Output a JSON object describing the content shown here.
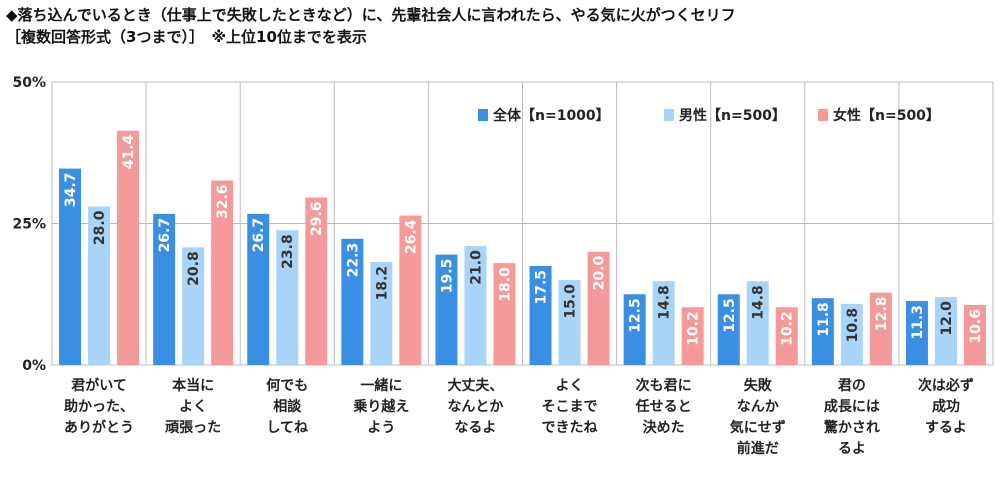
{
  "title": "◆落ち込んでいるとき（仕事上で失敗したときなど）に、先輩社会人に言われたら、やる気に火がつくセリフ",
  "subtitle": "［複数回答形式（3つまで）］　※上位10位までを表示",
  "colors": {
    "all": "#3a8fe3",
    "male": "#a9d3f7",
    "female": "#f59a9a",
    "grid": "#bdbdbd"
  },
  "chart_data": {
    "type": "bar",
    "ylim": [
      0,
      50
    ],
    "yticks": [
      "0%",
      "25%",
      "50%"
    ],
    "ytick_values": [
      0,
      25,
      50
    ],
    "legend_position": "top-right",
    "categories": [
      [
        "君がいて",
        "助かった、",
        "ありがとう"
      ],
      [
        "本当に",
        "よく",
        "頑張った"
      ],
      [
        "何でも",
        "相談",
        "してね"
      ],
      [
        "一緒に",
        "乗り越え",
        "よう"
      ],
      [
        "大丈夫、",
        "なんとか",
        "なるよ"
      ],
      [
        "よく",
        "そこまで",
        "できたね"
      ],
      [
        "次も君に",
        "任せると",
        "決めた"
      ],
      [
        "失敗",
        "なんか",
        "気にせず",
        "前進だ"
      ],
      [
        "君の",
        "成長には",
        "驚かされ",
        "るよ"
      ],
      [
        "次は必ず",
        "成功",
        "するよ"
      ]
    ],
    "series": [
      {
        "name": "全体【n=1000】",
        "values": [
          "34.7",
          "26.7",
          "26.7",
          "22.3",
          "19.5",
          "17.5",
          "12.5",
          "12.5",
          "11.8",
          "11.3"
        ]
      },
      {
        "name": "男性【n=500】",
        "values": [
          "28.0",
          "20.8",
          "23.8",
          "18.2",
          "21.0",
          "15.0",
          "14.8",
          "14.8",
          "10.8",
          "12.0"
        ]
      },
      {
        "name": "女性【n=500】",
        "values": [
          "41.4",
          "32.6",
          "29.6",
          "26.4",
          "18.0",
          "20.0",
          "10.2",
          "10.2",
          "12.8",
          "10.6"
        ]
      }
    ]
  }
}
